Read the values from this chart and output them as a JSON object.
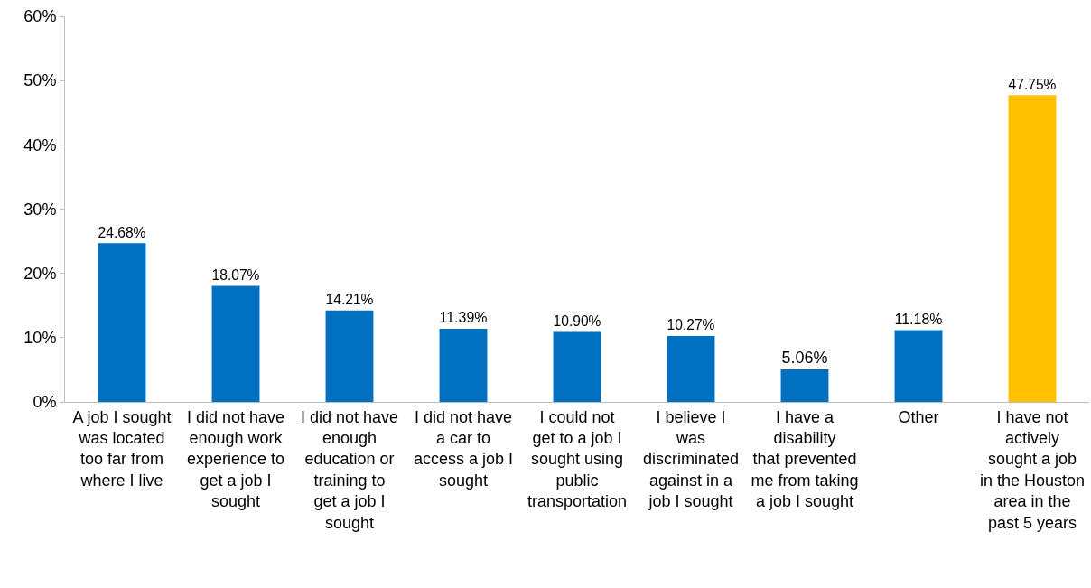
{
  "chart_data": {
    "type": "bar",
    "categories": [
      "A job I sought was located too far from where I live",
      "I did not have enough work experience to get a job I sought",
      "I did not have enough education or training to get a job I sought",
      "I did not have a car to access a job I sought",
      "I could not get to a job I sought using public transportation",
      "I believe I was discriminated against in a job I sought",
      "I have a disability that prevented me from taking a job I sought",
      "Other",
      "I have not actively sought a job in the Houston area in the past 5 years"
    ],
    "values": [
      24.68,
      18.07,
      14.21,
      11.39,
      10.9,
      10.27,
      5.06,
      11.18,
      47.75
    ],
    "value_labels": [
      "24.68%",
      "18.07%",
      "14.21%",
      "11.39%",
      "10.90%",
      "10.27%",
      "5.06%",
      "11.18%",
      "47.75%"
    ],
    "colors": [
      "#0070c0",
      "#0070c0",
      "#0070c0",
      "#0070c0",
      "#0070c0",
      "#0070c0",
      "#0070c0",
      "#0070c0",
      "#ffc000"
    ],
    "ylim": [
      0,
      60
    ],
    "yticks": [
      {
        "value": 0,
        "label": "0%"
      },
      {
        "value": 10,
        "label": "10%"
      },
      {
        "value": 20,
        "label": "20%"
      },
      {
        "value": 30,
        "label": "30%"
      },
      {
        "value": 40,
        "label": "40%"
      },
      {
        "value": 50,
        "label": "50%"
      },
      {
        "value": 60,
        "label": "60%"
      }
    ]
  }
}
